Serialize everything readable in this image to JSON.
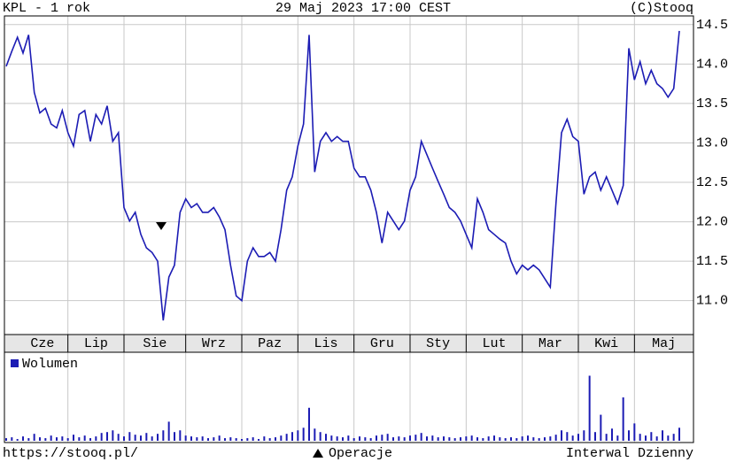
{
  "header": {
    "left": "KPL - 1 rok",
    "center": "29 Maj 2023 17:00 CEST",
    "right": "(C)Stooq"
  },
  "chart_data": {
    "type": "line",
    "series": [
      {
        "name": "KPL",
        "color": "#1c1cb4",
        "values": [
          13.97,
          14.16,
          14.34,
          14.14,
          14.37,
          13.64,
          13.38,
          13.44,
          13.24,
          13.19,
          13.41,
          13.13,
          12.96,
          13.36,
          13.41,
          13.02,
          13.36,
          13.24,
          13.47,
          13.02,
          13.13,
          12.18,
          12.01,
          12.12,
          11.84,
          11.67,
          11.61,
          11.5,
          10.75,
          11.3,
          11.45,
          12.12,
          12.29,
          12.18,
          12.23,
          12.12,
          12.12,
          12.18,
          12.06,
          11.9,
          11.45,
          11.06,
          11.0,
          11.5,
          11.67,
          11.56,
          11.56,
          11.61,
          11.5,
          11.9,
          12.4,
          12.57,
          12.96,
          13.24,
          14.37,
          12.63,
          13.02,
          13.13,
          13.02,
          13.08,
          13.02,
          13.02,
          12.68,
          12.57,
          12.57,
          12.4,
          12.12,
          11.73,
          12.12,
          12.01,
          11.9,
          12.01,
          12.4,
          12.57,
          13.02,
          12.85,
          12.68,
          12.51,
          12.35,
          12.18,
          12.12,
          12.01,
          11.84,
          11.67,
          12.29,
          12.12,
          11.9,
          11.84,
          11.78,
          11.73,
          11.5,
          11.34,
          11.45,
          11.39,
          11.45,
          11.39,
          11.28,
          11.17,
          12.23,
          13.13,
          13.3,
          13.08,
          13.02,
          12.35,
          12.57,
          12.63,
          12.4,
          12.57,
          12.4,
          12.23,
          12.46,
          14.2,
          13.8,
          14.03,
          13.75,
          13.92,
          13.75,
          13.69,
          13.58,
          13.69,
          14.42
        ]
      }
    ],
    "xlim": [
      0,
      120
    ],
    "xticks": [
      {
        "value": 0,
        "label": "Cze"
      },
      {
        "value": 11,
        "label": "Lip"
      },
      {
        "value": 21,
        "label": "Sie"
      },
      {
        "value": 32,
        "label": "Wrz"
      },
      {
        "value": 42,
        "label": "Paz"
      },
      {
        "value": 52,
        "label": "Lis"
      },
      {
        "value": 62,
        "label": "Gru"
      },
      {
        "value": 72,
        "label": "Sty"
      },
      {
        "value": 82,
        "label": "Lut"
      },
      {
        "value": 92,
        "label": "Mar"
      },
      {
        "value": 102,
        "label": "Kwi"
      },
      {
        "value": 112,
        "label": "Maj"
      }
    ],
    "ylim": [
      10.57,
      14.61
    ],
    "yticks": [
      {
        "value": 11,
        "label": "11.0"
      },
      11.5,
      {
        "value": 12,
        "label": "12.0"
      },
      12.5,
      {
        "value": 13,
        "label": "13.0"
      },
      13.5,
      {
        "value": 14,
        "label": "14.0"
      },
      14.5
    ],
    "grid": true,
    "volume": {
      "name": "Wolumen",
      "color": "#1c1cb4",
      "ylim": [
        0,
        100
      ],
      "values": [
        3,
        4,
        2,
        5,
        3,
        8,
        4,
        3,
        6,
        4,
        5,
        3,
        7,
        4,
        6,
        3,
        5,
        9,
        10,
        12,
        8,
        5,
        10,
        7,
        6,
        9,
        5,
        8,
        12,
        22,
        10,
        12,
        6,
        5,
        4,
        5,
        3,
        4,
        6,
        3,
        4,
        3,
        2,
        3,
        4,
        2,
        5,
        3,
        4,
        6,
        8,
        10,
        12,
        15,
        38,
        14,
        10,
        8,
        6,
        5,
        4,
        6,
        3,
        5,
        4,
        3,
        6,
        7,
        8,
        4,
        5,
        4,
        6,
        7,
        9,
        5,
        6,
        4,
        5,
        4,
        3,
        4,
        5,
        6,
        4,
        3,
        5,
        6,
        4,
        3,
        4,
        3,
        5,
        6,
        4,
        3,
        4,
        5,
        7,
        12,
        10,
        6,
        8,
        12,
        75,
        10,
        30,
        8,
        14,
        6,
        50,
        12,
        20,
        8,
        6,
        10,
        5,
        12,
        6,
        8,
        15
      ]
    }
  },
  "footer": {
    "left": "https://stooq.pl/",
    "center": "Operacje",
    "right": "Interwal Dzienny"
  }
}
